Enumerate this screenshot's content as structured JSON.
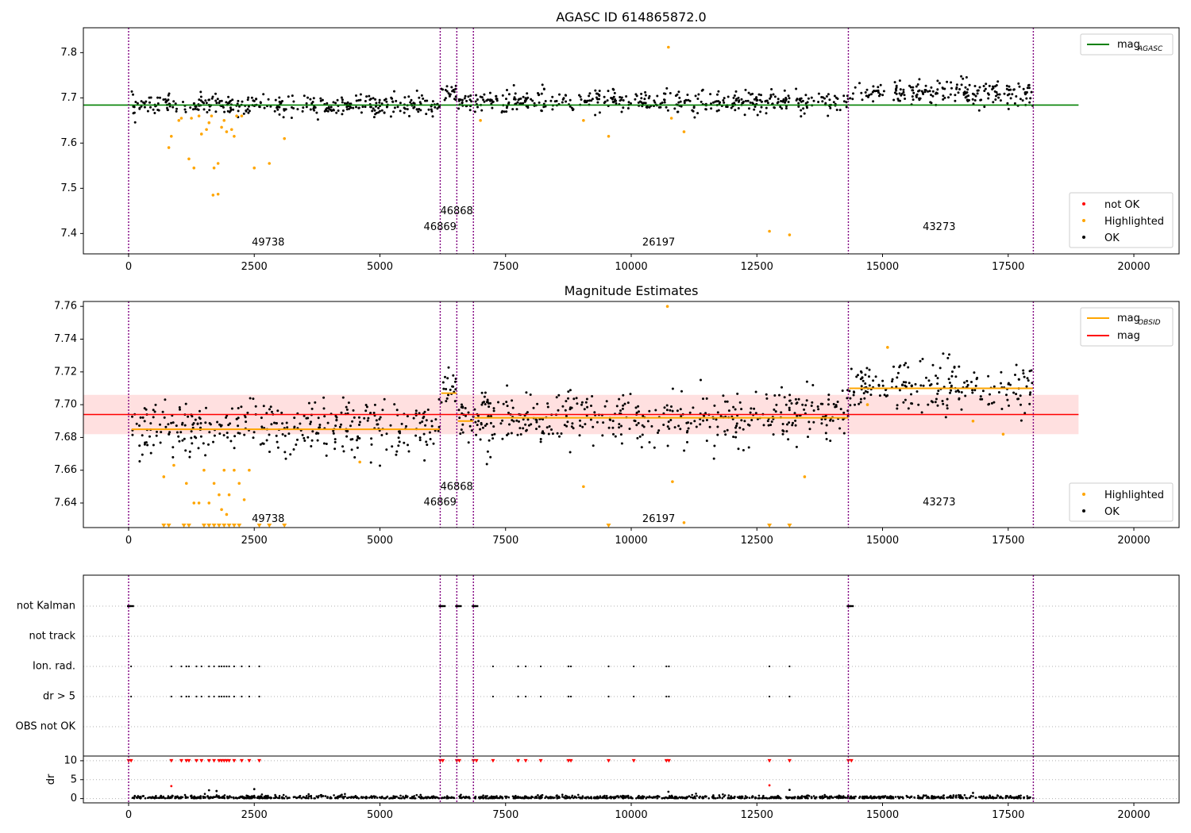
{
  "chart_data": [
    {
      "id": "p1",
      "type": "scatter",
      "title": "AGASC ID 614865872.0",
      "xlim": [
        -900,
        20900
      ],
      "ylim": [
        7.355,
        7.855
      ],
      "xticks": [
        0,
        2500,
        5000,
        7500,
        10000,
        12500,
        15000,
        17500,
        20000
      ],
      "yticks": [
        7.4,
        7.5,
        7.6,
        7.7,
        7.8
      ],
      "vlines": [
        0,
        6200,
        6530,
        6860,
        14320,
        18000
      ],
      "hline": {
        "y": 7.684,
        "x0": -900,
        "x1": 18900,
        "color": "#008000"
      },
      "segments": [
        {
          "x0": 60,
          "x1": 6200,
          "mean": 7.684,
          "spread": 0.011
        },
        {
          "x0": 6220,
          "x1": 6530,
          "mean": 7.708,
          "spread": 0.012
        },
        {
          "x0": 6550,
          "x1": 6860,
          "mean": 7.688,
          "spread": 0.012
        },
        {
          "x0": 6880,
          "x1": 14320,
          "mean": 7.691,
          "spread": 0.012
        },
        {
          "x0": 14340,
          "x1": 18000,
          "mean": 7.712,
          "spread": 0.014
        }
      ],
      "highlighted": [
        [
          800,
          7.59
        ],
        [
          850,
          7.615
        ],
        [
          1050,
          7.655
        ],
        [
          1200,
          7.565
        ],
        [
          1300,
          7.545
        ],
        [
          1450,
          7.62
        ],
        [
          1550,
          7.63
        ],
        [
          1600,
          7.645
        ],
        [
          1650,
          7.66
        ],
        [
          1700,
          7.545
        ],
        [
          1780,
          7.555
        ],
        [
          1850,
          7.635
        ],
        [
          1900,
          7.65
        ],
        [
          1950,
          7.625
        ],
        [
          2050,
          7.63
        ],
        [
          2100,
          7.615
        ],
        [
          2150,
          7.66
        ],
        [
          1680,
          7.485
        ],
        [
          1780,
          7.487
        ],
        [
          2500,
          7.545
        ],
        [
          2800,
          7.555
        ],
        [
          3100,
          7.61
        ],
        [
          10740,
          7.812
        ],
        [
          12750,
          7.405
        ],
        [
          13150,
          7.397
        ],
        [
          9550,
          7.615
        ],
        [
          11050,
          7.625
        ],
        [
          10800,
          7.655
        ],
        [
          7000,
          7.65
        ],
        [
          9050,
          7.65
        ],
        [
          1400,
          7.66
        ],
        [
          1000,
          7.65
        ],
        [
          1250,
          7.655
        ],
        [
          2250,
          7.66
        ]
      ],
      "annotations": [
        {
          "x": 2450,
          "y": 7.373,
          "text": "49738"
        },
        {
          "x": 5870,
          "y": 7.408,
          "text": "46869"
        },
        {
          "x": 6200,
          "y": 7.443,
          "text": "46868"
        },
        {
          "x": 10220,
          "y": 7.373,
          "text": "26197"
        },
        {
          "x": 15800,
          "y": 7.408,
          "text": "43273"
        }
      ],
      "legend_top": [
        {
          "label": "mag",
          "sub": "AGASC",
          "color": "#008000"
        }
      ],
      "legend_bottom": [
        {
          "label": "not OK",
          "color": "#ff0000"
        },
        {
          "label": "Highlighted",
          "color": "#ffa500"
        },
        {
          "label": "OK",
          "color": "#000000"
        }
      ]
    },
    {
      "id": "p2",
      "type": "scatter",
      "title": "Magnitude Estimates",
      "xlim": [
        -900,
        20900
      ],
      "ylim": [
        7.625,
        7.763
      ],
      "xticks": [
        0,
        2500,
        5000,
        7500,
        10000,
        12500,
        15000,
        17500,
        20000
      ],
      "yticks": [
        7.64,
        7.66,
        7.68,
        7.7,
        7.72,
        7.74,
        7.76
      ],
      "vlines": [
        0,
        6200,
        6530,
        6860,
        14320,
        18000
      ],
      "band": {
        "y0": 7.682,
        "y1": 7.706,
        "x0": -900,
        "x1": 18900
      },
      "hline": {
        "y": 7.694,
        "x0": -900,
        "x1": 18900,
        "color": "#ff0000"
      },
      "segments": [
        {
          "x0": 60,
          "x1": 6200,
          "mean": 7.685,
          "spread": 0.0085,
          "obs_mag": 7.685
        },
        {
          "x0": 6220,
          "x1": 6530,
          "mean": 7.707,
          "spread": 0.007,
          "obs_mag": 7.707
        },
        {
          "x0": 6550,
          "x1": 6860,
          "mean": 7.69,
          "spread": 0.005,
          "obs_mag": 7.69
        },
        {
          "x0": 6880,
          "x1": 14320,
          "mean": 7.692,
          "spread": 0.0085,
          "obs_mag": 7.692
        },
        {
          "x0": 14340,
          "x1": 18000,
          "mean": 7.71,
          "spread": 0.0085,
          "obs_mag": 7.71
        }
      ],
      "highlighted": [
        [
          700,
          7.656
        ],
        [
          900,
          7.663
        ],
        [
          1150,
          7.652
        ],
        [
          1300,
          7.64
        ],
        [
          1400,
          7.64
        ],
        [
          1500,
          7.66
        ],
        [
          1600,
          7.64
        ],
        [
          1700,
          7.652
        ],
        [
          1800,
          7.645
        ],
        [
          1900,
          7.66
        ],
        [
          2000,
          7.645
        ],
        [
          2100,
          7.66
        ],
        [
          2200,
          7.652
        ],
        [
          2300,
          7.642
        ],
        [
          2400,
          7.66
        ],
        [
          1850,
          7.636
        ],
        [
          1950,
          7.633
        ],
        [
          9050,
          7.65
        ],
        [
          10820,
          7.653
        ],
        [
          13450,
          7.656
        ],
        [
          11050,
          7.628
        ],
        [
          4600,
          7.665
        ],
        [
          14700,
          7.7
        ],
        [
          15100,
          7.735
        ],
        [
          16800,
          7.69
        ],
        [
          17400,
          7.682
        ],
        [
          10720,
          7.76
        ]
      ],
      "clipped": [
        700,
        800,
        1100,
        1200,
        1500,
        1600,
        1700,
        1800,
        1900,
        2000,
        2100,
        2200,
        2600,
        2800,
        3100,
        9550,
        12750,
        13150
      ],
      "annotations": [
        {
          "x": 2450,
          "y": 7.6285,
          "text": "49738"
        },
        {
          "x": 5870,
          "y": 7.6385,
          "text": "46869"
        },
        {
          "x": 6200,
          "y": 7.648,
          "text": "46868"
        },
        {
          "x": 10220,
          "y": 7.6285,
          "text": "26197"
        },
        {
          "x": 15800,
          "y": 7.6385,
          "text": "43273"
        }
      ],
      "legend_top": [
        {
          "label": "mag",
          "sub": "OBSID",
          "color": "#ffa500"
        },
        {
          "label": "mag",
          "sub": "",
          "color": "#ff0000"
        }
      ],
      "legend_bottom": [
        {
          "label": "Highlighted",
          "color": "#ffa500"
        },
        {
          "label": "OK",
          "color": "#000000"
        }
      ]
    },
    {
      "id": "p3",
      "type": "scatter",
      "xlim": [
        -900,
        20900
      ],
      "xticks": [
        0,
        2500,
        5000,
        7500,
        10000,
        12500,
        15000,
        17500,
        20000
      ],
      "vlines": [
        0,
        6200,
        6530,
        6860,
        14320,
        18000
      ],
      "flag_rows": [
        "not Kalman",
        "not track",
        "Ion. rad.",
        "dr > 5",
        "OBS not OK"
      ],
      "not_kalman_x": [
        0,
        60,
        6200,
        6260,
        6530,
        6580,
        6860,
        6910,
        14320,
        14380
      ],
      "ion_rad_x": [
        50,
        850,
        1050,
        1150,
        1200,
        1350,
        1450,
        1600,
        1700,
        1800,
        1850,
        1900,
        1950,
        2000,
        2100,
        2250,
        2400,
        2600,
        7250,
        7750,
        7900,
        8200,
        8750,
        8800,
        9550,
        10050,
        10700,
        10750,
        12750,
        13150
      ],
      "dr_ylabel": "dr",
      "dr_yticks": [
        0,
        5,
        10
      ],
      "dr_ylim": [
        -0.5,
        10.4
      ],
      "dr_clipped_x": [
        0,
        50,
        850,
        1050,
        1150,
        1200,
        1350,
        1450,
        1600,
        1700,
        1800,
        1850,
        1900,
        1950,
        2000,
        2100,
        2250,
        2400,
        2600,
        6200,
        6250,
        6530,
        6580,
        6860,
        6920,
        7250,
        7750,
        7900,
        8200,
        8750,
        8800,
        9550,
        10050,
        10700,
        10750,
        12750,
        13150,
        14320,
        14380
      ],
      "dr_outliers": [
        [
          850,
          3.3
        ],
        [
          1600,
          2.2
        ],
        [
          1750,
          2.0
        ],
        [
          2500,
          2.5
        ],
        [
          12750,
          3.5
        ],
        [
          13150,
          2.3
        ],
        [
          16800,
          1.5
        ],
        [
          10740,
          1.8
        ]
      ]
    }
  ]
}
